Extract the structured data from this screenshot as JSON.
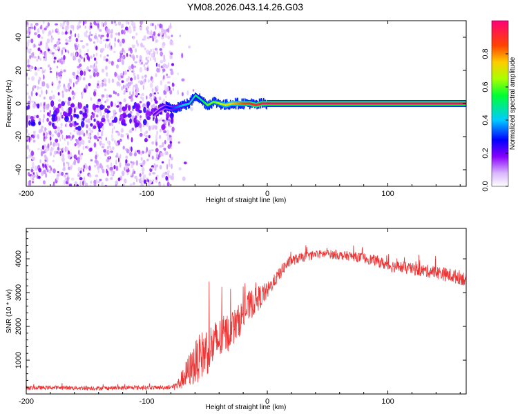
{
  "title": "YM08.2026.043.14.26.G03",
  "chart_data": [
    {
      "type": "heatmap",
      "name": "spectrogram",
      "xlabel": "Height of straight line (km)",
      "ylabel": "Frequency (Hz)",
      "xlim": [
        -200,
        165
      ],
      "ylim": [
        -50,
        50
      ],
      "xticks": [
        -200,
        -100,
        0,
        100
      ],
      "xtick_labels": [
        "-200",
        "-100",
        "0",
        "100"
      ],
      "yticks": [
        -40,
        -20,
        0,
        20,
        40
      ],
      "ytick_labels": [
        "-40",
        "-20",
        "0",
        "20",
        "40"
      ],
      "noise_region_x": [
        -200,
        -78
      ],
      "carrier": {
        "x": [
          -95,
          -90,
          -85,
          -80,
          -75,
          -70,
          -65,
          -62,
          -60,
          -55,
          -50,
          -45,
          -40,
          -35,
          -30,
          -25,
          -20,
          -15,
          -10,
          -5,
          0,
          165
        ],
        "frequency_hz": [
          -7,
          -4,
          -2,
          -3,
          -2,
          -1,
          0,
          3,
          5,
          2,
          -1,
          1,
          0,
          -1,
          0,
          0,
          0,
          0,
          -1,
          0,
          0,
          0
        ],
        "amplitude": [
          0.2,
          0.2,
          0.25,
          0.3,
          0.35,
          0.4,
          0.45,
          0.45,
          0.5,
          0.5,
          0.6,
          0.6,
          0.65,
          0.7,
          0.75,
          0.8,
          0.85,
          0.9,
          0.9,
          0.95,
          1.0,
          1.0
        ]
      },
      "colorbar": {
        "label": "Normalized spectral amplitude",
        "range": [
          0,
          1
        ],
        "ticks": [
          0.0,
          0.2,
          0.4,
          0.6,
          0.8
        ],
        "tick_labels": [
          "0.0",
          "0.2",
          "0.4",
          "0.6",
          "0.8"
        ]
      }
    },
    {
      "type": "line",
      "name": "snr",
      "xlabel": "Height of straight line (km)",
      "ylabel": "SNR (10 * v/v)",
      "xlim": [
        -200,
        165
      ],
      "ylim": [
        0,
        4900
      ],
      "xticks": [
        -200,
        -100,
        0,
        100
      ],
      "xtick_labels": [
        "-200",
        "-100",
        "0",
        "100"
      ],
      "yticks": [
        1000,
        2000,
        3000,
        4000
      ],
      "ytick_labels": [
        "1000",
        "2000",
        "3000",
        "4000"
      ],
      "series": [
        {
          "name": "SNR",
          "color": "#ee3333",
          "x": [
            -200,
            -180,
            -160,
            -140,
            -120,
            -100,
            -90,
            -80,
            -75,
            -70,
            -65,
            -60,
            -55,
            -50,
            -45,
            -40,
            -35,
            -30,
            -25,
            -20,
            -15,
            -10,
            -5,
            0,
            5,
            10,
            15,
            20,
            25,
            30,
            40,
            50,
            60,
            70,
            80,
            90,
            100,
            110,
            120,
            130,
            140,
            150,
            160,
            165
          ],
          "y": [
            180,
            190,
            180,
            170,
            180,
            190,
            190,
            200,
            250,
            450,
            700,
            900,
            1150,
            1300,
            1450,
            1600,
            1750,
            1900,
            2100,
            2350,
            2600,
            2750,
            2900,
            3050,
            3300,
            3550,
            3800,
            3950,
            4000,
            4050,
            4120,
            4150,
            4100,
            4080,
            4020,
            3950,
            3800,
            3750,
            3700,
            3650,
            3600,
            3520,
            3450,
            3400
          ],
          "noise_amplitude": [
            60,
            60,
            60,
            60,
            60,
            60,
            60,
            70,
            150,
            300,
            500,
            650,
            700,
            750,
            700,
            650,
            600,
            550,
            500,
            480,
            450,
            400,
            350,
            250,
            200,
            200,
            180,
            160,
            150,
            140,
            130,
            130,
            130,
            140,
            150,
            160,
            180,
            180,
            180,
            190,
            200,
            210,
            220,
            220
          ]
        }
      ]
    }
  ]
}
